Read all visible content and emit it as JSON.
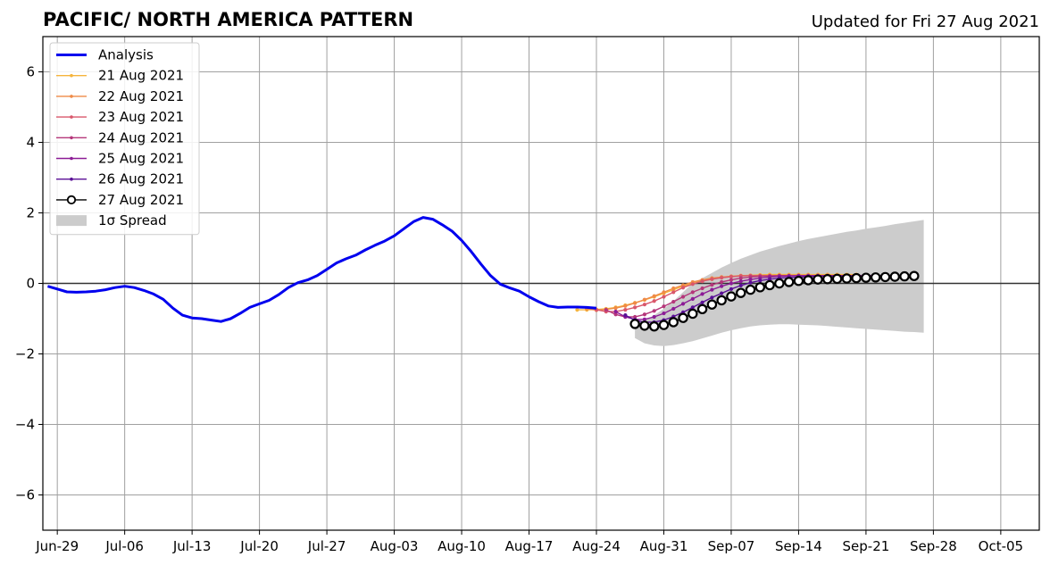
{
  "title": "PACIFIC/ NORTH AMERICA PATTERN",
  "updated": "Updated for Fri 27 Aug 2021",
  "chart_data": {
    "type": "line",
    "ylim": [
      -7,
      7
    ],
    "yticks": [
      -6,
      -4,
      -2,
      0,
      2,
      4,
      6
    ],
    "ytick_labels": [
      "−6",
      "−4",
      "−2",
      "0",
      "2",
      "4",
      "6"
    ],
    "xlim": [
      "2021-06-27T12",
      "2021-10-09"
    ],
    "xticks": [
      "2021-06-29",
      "2021-07-06",
      "2021-07-13",
      "2021-07-20",
      "2021-07-27",
      "2021-08-03",
      "2021-08-10",
      "2021-08-17",
      "2021-08-24",
      "2021-08-31",
      "2021-09-07",
      "2021-09-14",
      "2021-09-21",
      "2021-09-28",
      "2021-10-05"
    ],
    "xtick_labels": [
      "Jun-29",
      "Jul-06",
      "Jul-13",
      "Jul-20",
      "Jul-27",
      "Aug-03",
      "Aug-10",
      "Aug-17",
      "Aug-24",
      "Aug-31",
      "Sep-07",
      "Sep-14",
      "Sep-21",
      "Sep-28",
      "Oct-05"
    ],
    "grid": true,
    "legend_position": "upper-left",
    "analysis": {
      "name": "Analysis",
      "color": "#0000ee",
      "x": [
        "2021-06-28",
        "2021-06-29",
        "2021-06-30",
        "2021-07-01",
        "2021-07-02",
        "2021-07-03",
        "2021-07-04",
        "2021-07-05",
        "2021-07-06",
        "2021-07-07",
        "2021-07-08",
        "2021-07-09",
        "2021-07-10",
        "2021-07-11",
        "2021-07-12",
        "2021-07-13",
        "2021-07-14",
        "2021-07-15",
        "2021-07-16",
        "2021-07-17",
        "2021-07-18",
        "2021-07-19",
        "2021-07-20",
        "2021-07-21",
        "2021-07-22",
        "2021-07-23",
        "2021-07-24",
        "2021-07-25",
        "2021-07-26",
        "2021-07-27",
        "2021-07-28",
        "2021-07-29",
        "2021-07-30",
        "2021-07-31",
        "2021-08-01",
        "2021-08-02",
        "2021-08-03",
        "2021-08-04",
        "2021-08-05",
        "2021-08-06",
        "2021-08-07",
        "2021-08-08",
        "2021-08-09",
        "2021-08-10",
        "2021-08-11",
        "2021-08-12",
        "2021-08-13",
        "2021-08-14",
        "2021-08-15",
        "2021-08-16",
        "2021-08-17",
        "2021-08-18",
        "2021-08-19",
        "2021-08-20",
        "2021-08-21",
        "2021-08-22",
        "2021-08-23",
        "2021-08-24"
      ],
      "y": [
        -0.08,
        -0.16,
        -0.24,
        -0.25,
        -0.24,
        -0.22,
        -0.18,
        -0.12,
        -0.08,
        -0.12,
        -0.2,
        -0.3,
        -0.45,
        -0.7,
        -0.9,
        -0.98,
        -1.0,
        -1.04,
        -1.08,
        -1.0,
        -0.85,
        -0.68,
        -0.58,
        -0.48,
        -0.32,
        -0.12,
        0.02,
        0.1,
        0.22,
        0.4,
        0.58,
        0.7,
        0.8,
        0.95,
        1.08,
        1.2,
        1.35,
        1.55,
        1.75,
        1.87,
        1.82,
        1.66,
        1.48,
        1.22,
        0.9,
        0.55,
        0.22,
        -0.02,
        -0.13,
        -0.22,
        -0.38,
        -0.52,
        -0.64,
        -0.68,
        -0.67,
        -0.67,
        -0.68,
        -0.7
      ]
    },
    "series": [
      {
        "name": "21 Aug 2021",
        "color": "#f5b43c",
        "start": "2021-08-22",
        "y": [
          -0.75,
          -0.75,
          -0.74,
          -0.72,
          -0.68,
          -0.62,
          -0.55,
          -0.47,
          -0.38,
          -0.28,
          -0.18,
          -0.08,
          0.0,
          0.07,
          0.12,
          0.17,
          0.2,
          0.22,
          0.23,
          0.24,
          0.25,
          0.25,
          0.25,
          0.25,
          0.25,
          0.25,
          0.25,
          0.25,
          0.25,
          0.25
        ]
      },
      {
        "name": "22 Aug 2021",
        "color": "#ef8a47",
        "start": "2021-08-23",
        "y": [
          -0.72,
          -0.76,
          -0.74,
          -0.7,
          -0.64,
          -0.56,
          -0.46,
          -0.36,
          -0.25,
          -0.14,
          -0.05,
          0.04,
          0.1,
          0.15,
          0.18,
          0.2,
          0.22,
          0.22,
          0.22,
          0.22,
          0.22,
          0.22,
          0.22,
          0.22,
          0.22,
          0.22,
          0.22,
          0.22,
          0.22,
          0.22
        ]
      },
      {
        "name": "23 Aug 2021",
        "color": "#d9576b",
        "start": "2021-08-24",
        "y": [
          -0.75,
          -0.8,
          -0.8,
          -0.75,
          -0.68,
          -0.6,
          -0.5,
          -0.38,
          -0.25,
          -0.12,
          -0.02,
          0.06,
          0.12,
          0.16,
          0.19,
          0.21,
          0.22,
          0.22,
          0.22,
          0.22,
          0.22,
          0.22,
          0.22,
          0.22,
          0.22,
          0.22,
          0.22,
          0.22,
          0.22,
          0.22
        ]
      },
      {
        "name": "24 Aug 2021",
        "color": "#b5367a",
        "start": "2021-08-25",
        "y": [
          -0.75,
          -0.88,
          -0.95,
          -0.95,
          -0.88,
          -0.78,
          -0.65,
          -0.52,
          -0.38,
          -0.25,
          -0.14,
          -0.04,
          0.04,
          0.1,
          0.15,
          0.18,
          0.2,
          0.21,
          0.22,
          0.22,
          0.22,
          0.22,
          0.22,
          0.22,
          0.22,
          0.22,
          0.22,
          0.22,
          0.22,
          0.22
        ]
      },
      {
        "name": "25 Aug 2021",
        "color": "#8c1c96",
        "start": "2021-08-26",
        "y": [
          -0.8,
          -0.95,
          -1.02,
          -1.02,
          -0.95,
          -0.85,
          -0.72,
          -0.58,
          -0.44,
          -0.3,
          -0.18,
          -0.08,
          0.0,
          0.06,
          0.11,
          0.15,
          0.18,
          0.2,
          0.21,
          0.22,
          0.22,
          0.22,
          0.22,
          0.22,
          0.22,
          0.22,
          0.22,
          0.22,
          0.22,
          0.22
        ]
      },
      {
        "name": "26 Aug 2021",
        "color": "#5a0f96",
        "start": "2021-08-27",
        "y": [
          -0.9,
          -1.04,
          -1.1,
          -1.1,
          -1.04,
          -0.94,
          -0.82,
          -0.68,
          -0.54,
          -0.4,
          -0.28,
          -0.16,
          -0.06,
          0.02,
          0.08,
          0.12,
          0.15,
          0.17,
          0.18,
          0.19,
          0.2,
          0.2,
          0.2,
          0.2,
          0.2,
          0.2,
          0.2,
          0.2,
          0.2,
          0.2
        ]
      },
      {
        "name": "27 Aug 2021",
        "color": "#000000",
        "start": "2021-08-28",
        "open_markers": true,
        "y": [
          -1.15,
          -1.2,
          -1.22,
          -1.18,
          -1.1,
          -0.98,
          -0.86,
          -0.73,
          -0.6,
          -0.48,
          -0.37,
          -0.27,
          -0.18,
          -0.11,
          -0.05,
          0.0,
          0.04,
          0.07,
          0.09,
          0.11,
          0.12,
          0.13,
          0.14,
          0.15,
          0.16,
          0.17,
          0.18,
          0.19,
          0.2,
          0.21
        ]
      }
    ],
    "spread": {
      "name": "1σ Spread",
      "color": "#cccccc",
      "start": "2021-08-28",
      "upper": [
        -1.15,
        -1.05,
        -0.9,
        -0.72,
        -0.5,
        -0.25,
        0.0,
        0.15,
        0.3,
        0.45,
        0.58,
        0.7,
        0.8,
        0.9,
        0.98,
        1.06,
        1.13,
        1.2,
        1.26,
        1.31,
        1.36,
        1.41,
        1.46,
        1.5,
        1.55,
        1.59,
        1.63,
        1.68,
        1.72,
        1.76,
        1.8
      ],
      "lower": [
        -1.55,
        -1.7,
        -1.76,
        -1.78,
        -1.75,
        -1.7,
        -1.64,
        -1.56,
        -1.48,
        -1.4,
        -1.33,
        -1.27,
        -1.22,
        -1.19,
        -1.17,
        -1.16,
        -1.16,
        -1.17,
        -1.18,
        -1.19,
        -1.21,
        -1.23,
        -1.25,
        -1.27,
        -1.29,
        -1.31,
        -1.33,
        -1.35,
        -1.37,
        -1.38,
        -1.4
      ]
    }
  }
}
